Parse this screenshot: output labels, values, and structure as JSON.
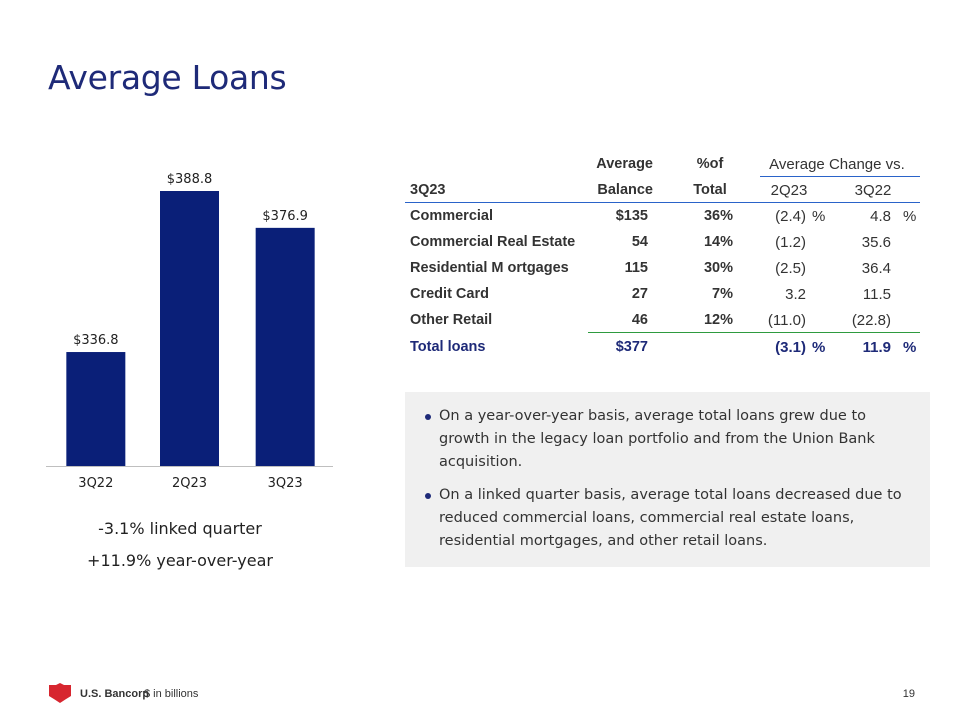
{
  "title": "Average Loans",
  "chart_data": {
    "type": "bar",
    "categories": [
      "3Q22",
      "2Q23",
      "3Q23"
    ],
    "values": [
      336.8,
      388.8,
      376.9
    ],
    "data_labels": [
      "$336.8",
      "$388.8",
      "$376.9"
    ],
    "title": "",
    "xlabel": "",
    "ylabel": "",
    "ylim": [
      300,
      400
    ],
    "bar_color": "#0a1f78",
    "grid": false
  },
  "chart_subtitle": {
    "line1": "-3.1% linked quarter",
    "line2": "+11.9% year-over-year"
  },
  "table": {
    "header": {
      "col1_top": "Average",
      "col1_bottom": "Balance",
      "col2_top": "%of",
      "col2_bottom": "Total",
      "group": "Average Change vs.",
      "col3": "2Q23",
      "col4": "3Q22",
      "row_label": "3Q23"
    },
    "rows": [
      {
        "name": "Commercial",
        "balance": "$135",
        "pct": "36%",
        "chg_q": "(2.4)",
        "chg_q_unit": "%",
        "chg_y": "4.8",
        "chg_y_unit": "%"
      },
      {
        "name": "Commercial Real Estate",
        "balance": "54",
        "pct": "14%",
        "chg_q": "(1.2)",
        "chg_y": "35.6"
      },
      {
        "name": "Residential M ortgages",
        "balance": "115",
        "pct": "30%",
        "chg_q": "(2.5)",
        "chg_y": "36.4"
      },
      {
        "name": "Credit Card",
        "balance": "27",
        "pct": "7%",
        "chg_q": "3.2",
        "chg_y": "11.5"
      },
      {
        "name": "Other Retail",
        "balance": "46",
        "pct": "12%",
        "chg_q": "(11.0)",
        "chg_y": "(22.8)"
      }
    ],
    "total": {
      "name": "Total loans",
      "balance": "$377",
      "chg_q": "(3.1)",
      "chg_q_unit": "%",
      "chg_y": "11.9",
      "chg_y_unit": "%"
    }
  },
  "bullets": [
    "On a year-over-year basis, average total loans grew due to growth in the legacy loan portfolio and from the Union Bank acquisition.",
    "On a linked quarter basis, average total loans decreased due to reduced commercial loans, commercial real estate loans, residential mortgages, and other retail loans."
  ],
  "footer": {
    "brand": "U.S. Bancorp",
    "note": "$ in billions",
    "page": "19"
  },
  "colors": {
    "accent": "#1e2a78",
    "bar": "#0a1f78",
    "rule_blue": "#2a63c9",
    "rule_green": "#2e9b3f",
    "logo_red": "#d7262f"
  }
}
